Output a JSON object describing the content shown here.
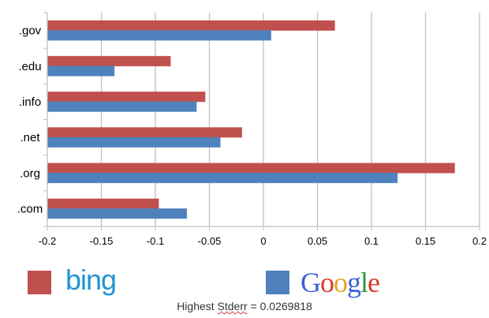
{
  "chart_data": {
    "type": "bar",
    "orientation": "horizontal",
    "title": "",
    "xlabel": "",
    "ylabel": "",
    "categories": [
      ".gov",
      ".edu",
      ".info",
      ".net",
      ".org",
      ".com"
    ],
    "series": [
      {
        "name": "bing",
        "color": "#c0504d",
        "values": [
          0.066,
          -0.086,
          -0.054,
          -0.02,
          0.177,
          -0.097
        ]
      },
      {
        "name": "Google",
        "color": "#4f81bd",
        "values": [
          0.007,
          -0.138,
          -0.062,
          -0.04,
          0.124,
          -0.071
        ]
      }
    ],
    "xlim": [
      -0.2,
      0.2
    ],
    "xticks": [
      -0.2,
      -0.15,
      -0.1,
      -0.05,
      0,
      0.05,
      0.1,
      0.15,
      0.2
    ],
    "xtick_labels": [
      "-0.2",
      "-0.15",
      "-0.1",
      "-0.05",
      "0",
      "0.05",
      "0.1",
      "0.15",
      "0.2"
    ],
    "grid": "vertical",
    "legend_position": "bottom",
    "annotation": "Highest Stderr = 0.0269818"
  },
  "legend": {
    "bing": {
      "label": "bing",
      "color": "#c0504d"
    },
    "google": {
      "label_parts": [
        "G",
        "o",
        "o",
        "g",
        "l",
        "e"
      ],
      "color": "#4f81bd"
    }
  },
  "footer": {
    "stderr_prefix": "Highest ",
    "stderr_word": "Stderr",
    "stderr_suffix": " = 0.0269818"
  },
  "colors": {
    "bing_bar": "#c0504d",
    "google_bar": "#4f81bd",
    "gridline": "#bfbfbf",
    "bing_logo": "#1f93d4"
  }
}
